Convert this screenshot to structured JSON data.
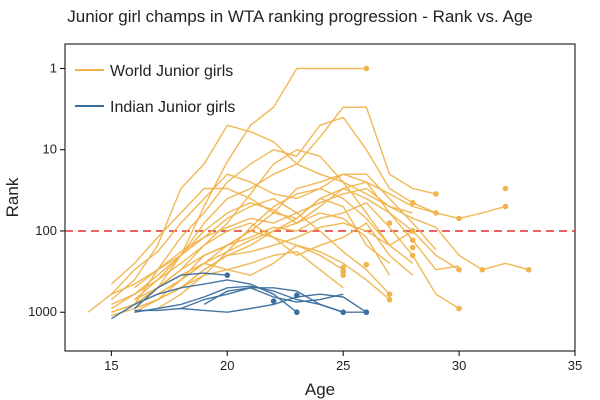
{
  "chart_data": {
    "type": "line",
    "title": "Junior girl champs in WTA ranking progression - Rank vs. Age",
    "xlabel": "Age",
    "ylabel": "Rank",
    "xlim": [
      13,
      35
    ],
    "ylim": [
      3000,
      0.5
    ],
    "yscale": "log-reversed",
    "x_ticks": [
      15,
      20,
      25,
      30,
      35
    ],
    "y_ticks": [
      1,
      10,
      100,
      1000
    ],
    "grid": false,
    "legend_position": "top-left",
    "reference_line": {
      "y": 100,
      "color": "#e03030",
      "style": "dashed"
    },
    "colors": {
      "world": "#f0b44c",
      "indian": "#3a6fa0"
    },
    "series": [
      {
        "name": "World Junior girls",
        "color": "#f0b44c"
      },
      {
        "name": "Indian Junior girls",
        "color": "#3a6fa0"
      }
    ],
    "world_lines": [
      [
        [
          16,
          900
        ],
        [
          17,
          500
        ],
        [
          18,
          200
        ],
        [
          19,
          50
        ],
        [
          20,
          14
        ],
        [
          21,
          5
        ],
        [
          22,
          3
        ],
        [
          23,
          1
        ],
        [
          24,
          1
        ],
        [
          25,
          1
        ],
        [
          26,
          1
        ]
      ],
      [
        [
          15,
          700
        ],
        [
          16,
          400
        ],
        [
          17,
          150
        ],
        [
          18,
          30
        ],
        [
          19,
          15
        ],
        [
          20,
          5
        ],
        [
          21,
          6
        ],
        [
          22,
          8
        ],
        [
          23,
          15
        ],
        [
          24,
          7
        ],
        [
          25,
          3
        ],
        [
          26,
          3
        ],
        [
          27,
          20
        ],
        [
          28,
          30
        ],
        [
          29,
          35
        ]
      ],
      [
        [
          16,
          800
        ],
        [
          17,
          300
        ],
        [
          18,
          120
        ],
        [
          19,
          60
        ],
        [
          20,
          25
        ],
        [
          21,
          15
        ],
        [
          22,
          10
        ],
        [
          23,
          12
        ],
        [
          24,
          5
        ],
        [
          25,
          4
        ],
        [
          26,
          10
        ],
        [
          27,
          30
        ],
        [
          28,
          45
        ],
        [
          29,
          60
        ]
      ],
      [
        [
          15,
          450
        ],
        [
          16,
          250
        ],
        [
          17,
          120
        ],
        [
          18,
          60
        ],
        [
          19,
          30
        ],
        [
          20,
          30
        ],
        [
          21,
          40
        ],
        [
          22,
          60
        ],
        [
          23,
          30
        ],
        [
          24,
          25
        ],
        [
          25,
          20
        ],
        [
          26,
          20
        ],
        [
          27,
          40
        ],
        [
          28,
          80
        ],
        [
          29,
          170
        ]
      ],
      [
        [
          14,
          1000
        ],
        [
          15,
          600
        ],
        [
          16,
          300
        ],
        [
          17,
          180
        ],
        [
          18,
          80
        ],
        [
          19,
          40
        ],
        [
          20,
          20
        ],
        [
          21,
          25
        ],
        [
          22,
          35
        ],
        [
          23,
          40
        ],
        [
          24,
          30
        ],
        [
          25,
          20
        ],
        [
          26,
          25
        ],
        [
          27,
          35
        ],
        [
          28,
          50
        ],
        [
          29,
          60
        ],
        [
          30,
          70
        ],
        [
          31,
          60
        ],
        [
          32,
          50
        ]
      ],
      [
        [
          16,
          700
        ],
        [
          17,
          400
        ],
        [
          18,
          200
        ],
        [
          19,
          80
        ],
        [
          20,
          40
        ],
        [
          21,
          30
        ],
        [
          22,
          20
        ],
        [
          23,
          15
        ],
        [
          24,
          20
        ],
        [
          25,
          25
        ],
        [
          26,
          35
        ],
        [
          27,
          50
        ],
        [
          28,
          70
        ],
        [
          29,
          90
        ],
        [
          30,
          200
        ],
        [
          31,
          300
        ],
        [
          32,
          250
        ],
        [
          33,
          300
        ]
      ],
      [
        [
          15,
          800
        ],
        [
          16,
          600
        ],
        [
          17,
          350
        ],
        [
          18,
          200
        ],
        [
          19,
          100
        ],
        [
          20,
          60
        ],
        [
          21,
          45
        ],
        [
          22,
          55
        ],
        [
          23,
          80
        ],
        [
          24,
          50
        ],
        [
          25,
          30
        ],
        [
          26,
          40
        ],
        [
          27,
          60
        ],
        [
          28,
          130
        ],
        [
          29,
          300
        ],
        [
          30,
          270
        ]
      ],
      [
        [
          16,
          900
        ],
        [
          17,
          700
        ],
        [
          18,
          400
        ],
        [
          19,
          250
        ],
        [
          20,
          150
        ],
        [
          21,
          100
        ],
        [
          22,
          60
        ],
        [
          23,
          70
        ],
        [
          24,
          40
        ],
        [
          25,
          30
        ],
        [
          26,
          25
        ],
        [
          27,
          60
        ],
        [
          28,
          100
        ],
        [
          29,
          200
        ],
        [
          30,
          300
        ]
      ],
      [
        [
          15,
          1000
        ],
        [
          16,
          800
        ],
        [
          17,
          500
        ],
        [
          18,
          300
        ],
        [
          19,
          200
        ],
        [
          20,
          150
        ],
        [
          21,
          120
        ],
        [
          22,
          90
        ],
        [
          23,
          100
        ],
        [
          24,
          70
        ],
        [
          25,
          60
        ],
        [
          26,
          45
        ],
        [
          27,
          90
        ],
        [
          28,
          200
        ],
        [
          29,
          600
        ],
        [
          30,
          900
        ]
      ],
      [
        [
          16,
          1000
        ],
        [
          17,
          700
        ],
        [
          18,
          500
        ],
        [
          19,
          300
        ],
        [
          20,
          200
        ],
        [
          21,
          180
        ],
        [
          22,
          150
        ],
        [
          23,
          120
        ],
        [
          24,
          90
        ],
        [
          25,
          80
        ],
        [
          26,
          100
        ],
        [
          27,
          150
        ]
      ],
      [
        [
          15,
          900
        ],
        [
          16,
          600
        ],
        [
          17,
          400
        ],
        [
          18,
          250
        ],
        [
          19,
          150
        ],
        [
          20,
          100
        ],
        [
          21,
          80
        ],
        [
          22,
          120
        ],
        [
          23,
          200
        ],
        [
          24,
          150
        ],
        [
          25,
          120
        ],
        [
          26,
          80
        ],
        [
          27,
          200
        ],
        [
          28,
          350
        ]
      ],
      [
        [
          16,
          500
        ],
        [
          17,
          300
        ],
        [
          18,
          180
        ],
        [
          19,
          120
        ],
        [
          20,
          70
        ],
        [
          21,
          50
        ],
        [
          22,
          40
        ],
        [
          23,
          60
        ],
        [
          24,
          100
        ],
        [
          25,
          180
        ],
        [
          26,
          300
        ],
        [
          27,
          600
        ]
      ],
      [
        [
          17,
          600
        ],
        [
          18,
          400
        ],
        [
          19,
          200
        ],
        [
          20,
          150
        ],
        [
          21,
          100
        ],
        [
          22,
          120
        ],
        [
          23,
          150
        ],
        [
          24,
          180
        ],
        [
          25,
          250
        ],
        [
          26,
          400
        ],
        [
          27,
          700
        ]
      ],
      [
        [
          15,
          1100
        ],
        [
          16,
          900
        ],
        [
          17,
          700
        ],
        [
          18,
          500
        ],
        [
          19,
          350
        ],
        [
          20,
          300
        ],
        [
          21,
          250
        ],
        [
          22,
          200
        ],
        [
          23,
          180
        ],
        [
          24,
          300
        ],
        [
          25,
          500
        ]
      ],
      [
        [
          16,
          800
        ],
        [
          17,
          500
        ],
        [
          18,
          350
        ],
        [
          19,
          250
        ],
        [
          20,
          300
        ],
        [
          21,
          350
        ],
        [
          22,
          250
        ],
        [
          23,
          150
        ],
        [
          24,
          200
        ],
        [
          25,
          300
        ]
      ],
      [
        [
          15,
          600
        ],
        [
          16,
          450
        ],
        [
          17,
          300
        ],
        [
          18,
          200
        ],
        [
          19,
          120
        ],
        [
          20,
          90
        ],
        [
          21,
          70
        ],
        [
          22,
          80
        ],
        [
          23,
          60
        ],
        [
          24,
          45
        ],
        [
          25,
          35
        ],
        [
          26,
          30
        ],
        [
          27,
          50
        ],
        [
          28,
          60
        ]
      ],
      [
        [
          16,
          700
        ],
        [
          17,
          500
        ],
        [
          18,
          300
        ],
        [
          19,
          150
        ],
        [
          20,
          80
        ],
        [
          21,
          35
        ],
        [
          22,
          15
        ],
        [
          23,
          10
        ],
        [
          24,
          12
        ],
        [
          25,
          25
        ],
        [
          26,
          60
        ],
        [
          27,
          150
        ],
        [
          28,
          250
        ]
      ],
      [
        [
          17,
          900
        ],
        [
          18,
          600
        ],
        [
          19,
          350
        ],
        [
          20,
          180
        ],
        [
          21,
          90
        ],
        [
          22,
          50
        ],
        [
          23,
          35
        ],
        [
          24,
          30
        ],
        [
          25,
          40
        ],
        [
          26,
          70
        ],
        [
          27,
          150
        ],
        [
          28,
          100
        ]
      ],
      [
        [
          15,
          1000
        ],
        [
          16,
          800
        ],
        [
          17,
          600
        ],
        [
          18,
          400
        ],
        [
          19,
          250
        ],
        [
          20,
          180
        ],
        [
          21,
          130
        ],
        [
          22,
          100
        ],
        [
          23,
          80
        ],
        [
          24,
          60
        ],
        [
          25,
          70
        ],
        [
          26,
          120
        ],
        [
          27,
          350
        ]
      ],
      [
        [
          18,
          500
        ],
        [
          19,
          300
        ],
        [
          20,
          200
        ],
        [
          21,
          150
        ],
        [
          22,
          100
        ],
        [
          23,
          70
        ],
        [
          24,
          40
        ],
        [
          25,
          50
        ],
        [
          26,
          150
        ],
        [
          27,
          250
        ]
      ]
    ],
    "world_end_points": [
      [
        26,
        1
      ],
      [
        29,
        35
      ],
      [
        32,
        30
      ],
      [
        32,
        50
      ],
      [
        29,
        60
      ],
      [
        30,
        70
      ],
      [
        28,
        45
      ],
      [
        27,
        80
      ],
      [
        28,
        100
      ],
      [
        28,
        130
      ],
      [
        28,
        160
      ],
      [
        28,
        200
      ],
      [
        31,
        300
      ],
      [
        33,
        300
      ],
      [
        30,
        300
      ],
      [
        26,
        260
      ],
      [
        25,
        280
      ],
      [
        25,
        310
      ],
      [
        25,
        320
      ],
      [
        25,
        350
      ],
      [
        27,
        600
      ],
      [
        27,
        700
      ],
      [
        30,
        900
      ]
    ],
    "indian_lines": [
      [
        [
          15,
          1200
        ],
        [
          16,
          800
        ],
        [
          17,
          600
        ],
        [
          18,
          500
        ],
        [
          19,
          450
        ],
        [
          20,
          400
        ],
        [
          21,
          450
        ],
        [
          22,
          600
        ],
        [
          23,
          1000
        ]
      ],
      [
        [
          16,
          1000
        ],
        [
          17,
          900
        ],
        [
          18,
          800
        ],
        [
          19,
          650
        ],
        [
          20,
          500
        ],
        [
          21,
          480
        ],
        [
          22,
          550
        ],
        [
          23,
          700
        ],
        [
          24,
          800
        ],
        [
          25,
          1000
        ]
      ],
      [
        [
          18,
          900
        ],
        [
          19,
          700
        ],
        [
          20,
          600
        ],
        [
          21,
          500
        ],
        [
          22,
          500
        ],
        [
          23,
          550
        ],
        [
          24,
          800
        ],
        [
          25,
          1000
        ],
        [
          26,
          1000
        ]
      ],
      [
        [
          16,
          900
        ],
        [
          17,
          500
        ],
        [
          18,
          350
        ],
        [
          19,
          330
        ],
        [
          20,
          350
        ]
      ],
      [
        [
          16,
          950
        ],
        [
          17,
          950
        ],
        [
          18,
          900
        ],
        [
          19,
          950
        ],
        [
          20,
          1000
        ],
        [
          21,
          900
        ],
        [
          22,
          800
        ],
        [
          23,
          650
        ],
        [
          24,
          600
        ],
        [
          25,
          650
        ],
        [
          26,
          1000
        ]
      ],
      [
        [
          19,
          800
        ],
        [
          20,
          550
        ],
        [
          21,
          500
        ],
        [
          22,
          650
        ],
        [
          23,
          750
        ],
        [
          24,
          700
        ],
        [
          25,
          600
        ]
      ]
    ],
    "indian_end_points": [
      [
        20,
        350
      ],
      [
        22,
        730
      ],
      [
        23,
        620
      ],
      [
        23,
        1000
      ],
      [
        25,
        1000
      ],
      [
        26,
        1000
      ]
    ]
  }
}
